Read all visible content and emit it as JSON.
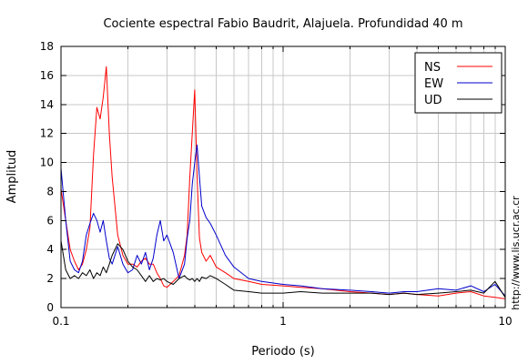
{
  "chart_data": {
    "type": "line",
    "title": "Cociente espectral Fabio Baudrit, Alajuela. Profundidad 40 m",
    "xlabel": "Periodo (s)",
    "ylabel": "Amplitud",
    "xscale": "log",
    "xlim": [
      0.1,
      10
    ],
    "ylim": [
      0,
      18
    ],
    "xticks": [
      0.1,
      1,
      10
    ],
    "xtick_labels": [
      "0.1",
      "1",
      "10"
    ],
    "yticks": [
      0,
      2,
      4,
      6,
      8,
      10,
      12,
      14,
      16,
      18
    ],
    "ytick_labels": [
      "0",
      "2",
      "4",
      "6",
      "8",
      "10",
      "12",
      "14",
      "16",
      "18"
    ],
    "grid": true,
    "legend_position": "top-right",
    "side_text": "http://www.lis.ucr.ac.cr",
    "series": [
      {
        "name": "NS",
        "color": "#ff0000",
        "x": [
          0.1,
          0.105,
          0.11,
          0.115,
          0.12,
          0.125,
          0.13,
          0.135,
          0.14,
          0.145,
          0.15,
          0.155,
          0.16,
          0.165,
          0.17,
          0.18,
          0.19,
          0.2,
          0.21,
          0.22,
          0.23,
          0.24,
          0.25,
          0.26,
          0.27,
          0.28,
          0.29,
          0.3,
          0.32,
          0.34,
          0.36,
          0.37,
          0.38,
          0.39,
          0.4,
          0.41,
          0.42,
          0.43,
          0.45,
          0.47,
          0.5,
          0.55,
          0.6,
          0.7,
          0.8,
          1.0,
          1.2,
          1.5,
          2.0,
          2.5,
          3.0,
          3.5,
          4.0,
          5.0,
          6.0,
          7.0,
          8.0,
          9.0,
          10.0
        ],
        "y": [
          8.2,
          6.0,
          4.0,
          3.2,
          2.6,
          3.0,
          4.0,
          5.5,
          10.5,
          13.8,
          13.0,
          14.5,
          16.6,
          12.0,
          9.0,
          5.0,
          3.6,
          3.0,
          3.0,
          2.8,
          3.2,
          3.4,
          3.0,
          3.0,
          2.4,
          2.0,
          1.5,
          1.4,
          1.8,
          2.2,
          3.6,
          5.0,
          9.0,
          12.0,
          15.0,
          9.0,
          4.8,
          3.8,
          3.2,
          3.6,
          2.8,
          2.4,
          2.0,
          1.8,
          1.6,
          1.5,
          1.4,
          1.3,
          1.1,
          1.0,
          0.9,
          1.0,
          0.9,
          0.8,
          1.0,
          1.1,
          0.8,
          0.7,
          0.6
        ]
      },
      {
        "name": "EW",
        "color": "#0000cc",
        "x": [
          0.1,
          0.105,
          0.11,
          0.115,
          0.12,
          0.125,
          0.13,
          0.135,
          0.14,
          0.145,
          0.15,
          0.155,
          0.16,
          0.165,
          0.17,
          0.18,
          0.19,
          0.2,
          0.21,
          0.22,
          0.23,
          0.24,
          0.25,
          0.26,
          0.27,
          0.28,
          0.29,
          0.3,
          0.32,
          0.34,
          0.36,
          0.37,
          0.38,
          0.39,
          0.4,
          0.41,
          0.42,
          0.43,
          0.45,
          0.47,
          0.5,
          0.55,
          0.6,
          0.7,
          0.8,
          1.0,
          1.2,
          1.5,
          2.0,
          2.5,
          3.0,
          3.5,
          4.0,
          5.0,
          6.0,
          7.0,
          8.0,
          9.0,
          10.0
        ],
        "y": [
          9.6,
          6.0,
          3.2,
          2.6,
          2.4,
          3.2,
          5.0,
          5.8,
          6.5,
          6.0,
          5.2,
          6.0,
          4.6,
          3.4,
          3.0,
          4.2,
          3.0,
          2.4,
          2.6,
          3.6,
          3.0,
          3.8,
          2.6,
          3.4,
          5.0,
          6.0,
          4.6,
          5.0,
          3.8,
          2.0,
          3.0,
          4.8,
          6.0,
          8.5,
          10.0,
          11.2,
          9.0,
          7.0,
          6.2,
          5.8,
          5.0,
          3.6,
          2.8,
          2.0,
          1.8,
          1.6,
          1.5,
          1.3,
          1.2,
          1.1,
          1.0,
          1.1,
          1.1,
          1.3,
          1.2,
          1.5,
          1.1,
          1.6,
          0.8
        ]
      },
      {
        "name": "UD",
        "color": "#000000",
        "x": [
          0.1,
          0.105,
          0.11,
          0.115,
          0.12,
          0.125,
          0.13,
          0.135,
          0.14,
          0.145,
          0.15,
          0.155,
          0.16,
          0.165,
          0.17,
          0.18,
          0.19,
          0.2,
          0.21,
          0.22,
          0.23,
          0.24,
          0.25,
          0.26,
          0.27,
          0.28,
          0.29,
          0.3,
          0.32,
          0.34,
          0.36,
          0.37,
          0.38,
          0.39,
          0.4,
          0.41,
          0.42,
          0.43,
          0.45,
          0.47,
          0.5,
          0.55,
          0.6,
          0.7,
          0.8,
          1.0,
          1.2,
          1.5,
          2.0,
          2.5,
          3.0,
          3.5,
          4.0,
          5.0,
          6.0,
          7.0,
          8.0,
          9.0,
          10.0
        ],
        "y": [
          4.6,
          2.6,
          2.0,
          2.2,
          2.0,
          2.4,
          2.2,
          2.6,
          2.0,
          2.4,
          2.2,
          2.8,
          2.4,
          3.0,
          3.6,
          4.4,
          4.0,
          3.2,
          2.8,
          2.6,
          2.2,
          1.8,
          2.2,
          1.8,
          2.0,
          1.9,
          2.0,
          1.8,
          1.6,
          2.0,
          2.2,
          2.0,
          1.9,
          2.0,
          1.8,
          2.0,
          1.8,
          2.1,
          2.0,
          2.2,
          2.0,
          1.6,
          1.2,
          1.1,
          1.0,
          1.0,
          1.1,
          1.0,
          1.0,
          1.0,
          0.9,
          1.0,
          0.9,
          1.0,
          1.1,
          1.2,
          1.0,
          1.8,
          0.7
        ]
      }
    ]
  }
}
